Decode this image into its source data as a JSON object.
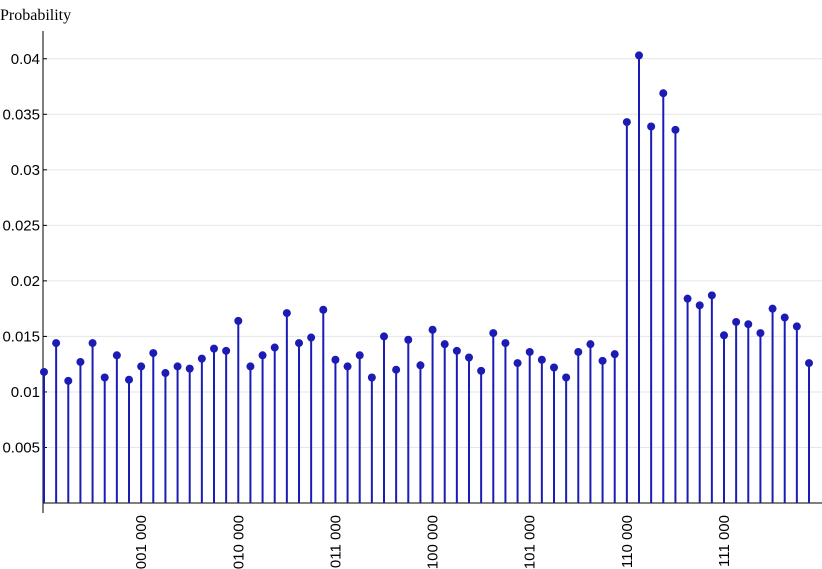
{
  "chart_data": {
    "type": "stem",
    "y_label": "Probability",
    "categories": [
      null,
      null,
      null,
      null,
      null,
      null,
      null,
      null,
      "001 000",
      null,
      null,
      null,
      null,
      null,
      null,
      null,
      "010 000",
      null,
      null,
      null,
      null,
      null,
      null,
      null,
      "011 000",
      null,
      null,
      null,
      null,
      null,
      null,
      null,
      "100 000",
      null,
      null,
      null,
      null,
      null,
      null,
      null,
      "101 000",
      null,
      null,
      null,
      null,
      null,
      null,
      null,
      "110 000",
      null,
      null,
      null,
      null,
      null,
      null,
      null,
      "111 000",
      null,
      null,
      null,
      null,
      null,
      null,
      null
    ],
    "values": [
      0.0118,
      0.0144,
      0.011,
      0.0127,
      0.0144,
      0.0113,
      0.0133,
      0.0111,
      0.0123,
      0.0135,
      0.0117,
      0.0123,
      0.0121,
      0.013,
      0.0139,
      0.0137,
      0.0164,
      0.0123,
      0.0133,
      0.014,
      0.0171,
      0.0144,
      0.0149,
      0.0174,
      0.0129,
      0.0123,
      0.0133,
      0.0113,
      0.015,
      0.012,
      0.0147,
      0.0124,
      0.0156,
      0.0143,
      0.0137,
      0.0131,
      0.0119,
      0.0153,
      0.0144,
      0.0126,
      0.0136,
      0.0129,
      0.0122,
      0.0113,
      0.0136,
      0.0143,
      0.0128,
      0.0134,
      0.0343,
      0.0403,
      0.0339,
      0.0369,
      0.0336,
      0.0184,
      0.0178,
      0.0187,
      0.0151,
      0.0163,
      0.0161,
      0.0153,
      0.0175,
      0.0167,
      0.0159,
      0.0126
    ],
    "color": "#1c1cb4",
    "ylim": [
      0,
      0.0425
    ],
    "yticks": [
      0.005,
      0.01,
      0.015,
      0.02,
      0.025,
      0.03,
      0.035,
      0.04
    ],
    "grid": true
  }
}
